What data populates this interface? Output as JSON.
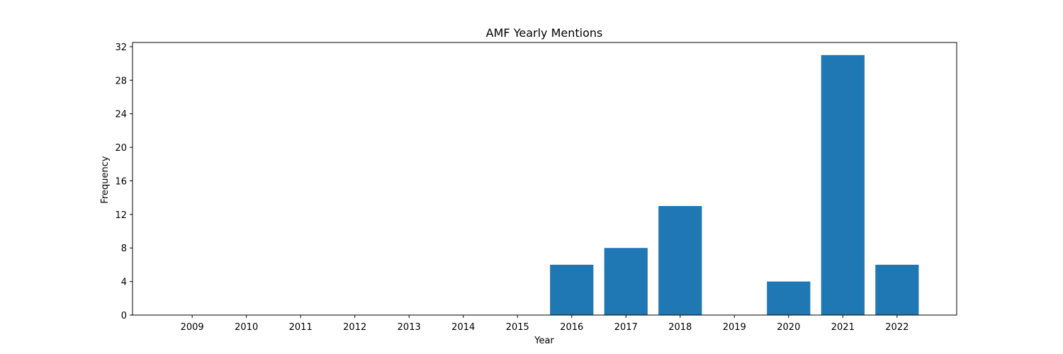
{
  "chart_data": {
    "type": "bar",
    "title": "AMF Yearly Mentions",
    "xlabel": "Year",
    "ylabel": "Frequency",
    "categories": [
      "2009",
      "2010",
      "2011",
      "2012",
      "2013",
      "2014",
      "2015",
      "2016",
      "2017",
      "2018",
      "2019",
      "2020",
      "2021",
      "2022"
    ],
    "values": [
      0,
      0,
      0,
      0,
      0,
      0,
      0,
      6,
      8,
      13,
      0,
      4,
      31,
      6
    ],
    "ylim": [
      0,
      32.5
    ],
    "yticks": [
      0,
      4,
      8,
      12,
      16,
      20,
      24,
      28,
      32
    ],
    "bar_color": "#1f77b4",
    "grid": false
  }
}
